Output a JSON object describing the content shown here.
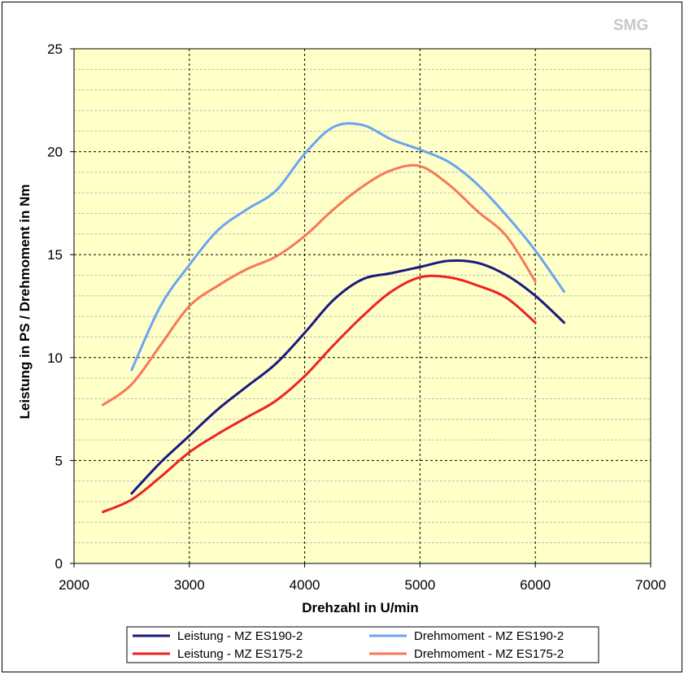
{
  "watermark": "SMG",
  "chart_data": {
    "type": "line",
    "title": "",
    "xlabel": "Drehzahl in U/min",
    "ylabel": "Leistung in PS / Drehmoment in Nm",
    "xlim": [
      2000,
      7000
    ],
    "ylim": [
      0,
      25
    ],
    "x_ticks": [
      2000,
      3000,
      4000,
      5000,
      6000,
      7000
    ],
    "y_ticks": [
      0,
      5,
      10,
      15,
      20,
      25
    ],
    "y_minor_step": 1,
    "grid": true,
    "legend_position": "bottom",
    "plot_background": "#ffffc8",
    "series": [
      {
        "name": "Leistung - MZ ES190-2",
        "color": "#1a1a80",
        "x": [
          2500,
          2750,
          3000,
          3250,
          3500,
          3750,
          4000,
          4250,
          4500,
          4750,
          5000,
          5250,
          5500,
          5750,
          6000,
          6250
        ],
        "y": [
          3.4,
          4.9,
          6.2,
          7.5,
          8.6,
          9.7,
          11.2,
          12.8,
          13.8,
          14.1,
          14.4,
          14.7,
          14.6,
          14.0,
          13.0,
          11.7
        ]
      },
      {
        "name": "Drehmoment - MZ ES190-2",
        "color": "#6aa4f2",
        "x": [
          2500,
          2750,
          3000,
          3250,
          3500,
          3750,
          4000,
          4250,
          4500,
          4750,
          5000,
          5250,
          5500,
          5750,
          6000,
          6250
        ],
        "y": [
          9.4,
          12.5,
          14.5,
          16.2,
          17.2,
          18.1,
          19.9,
          21.2,
          21.3,
          20.6,
          20.1,
          19.5,
          18.4,
          16.9,
          15.2,
          13.2
        ]
      },
      {
        "name": "Leistung - MZ ES175-2",
        "color": "#ee2222",
        "x": [
          2250,
          2500,
          2750,
          3000,
          3250,
          3500,
          3750,
          4000,
          4250,
          4500,
          4750,
          5000,
          5250,
          5500,
          5750,
          6000
        ],
        "y": [
          2.5,
          3.1,
          4.2,
          5.4,
          6.3,
          7.1,
          7.9,
          9.1,
          10.6,
          12.0,
          13.2,
          13.9,
          13.9,
          13.5,
          12.9,
          11.7
        ]
      },
      {
        "name": "Drehmoment - MZ ES175-2",
        "color": "#f87858",
        "x": [
          2250,
          2500,
          2750,
          3000,
          3250,
          3500,
          3750,
          4000,
          4250,
          4500,
          4750,
          5000,
          5250,
          5500,
          5750,
          6000
        ],
        "y": [
          7.7,
          8.7,
          10.6,
          12.5,
          13.5,
          14.3,
          14.9,
          15.9,
          17.2,
          18.3,
          19.1,
          19.3,
          18.4,
          17.1,
          15.9,
          13.7
        ]
      }
    ]
  }
}
